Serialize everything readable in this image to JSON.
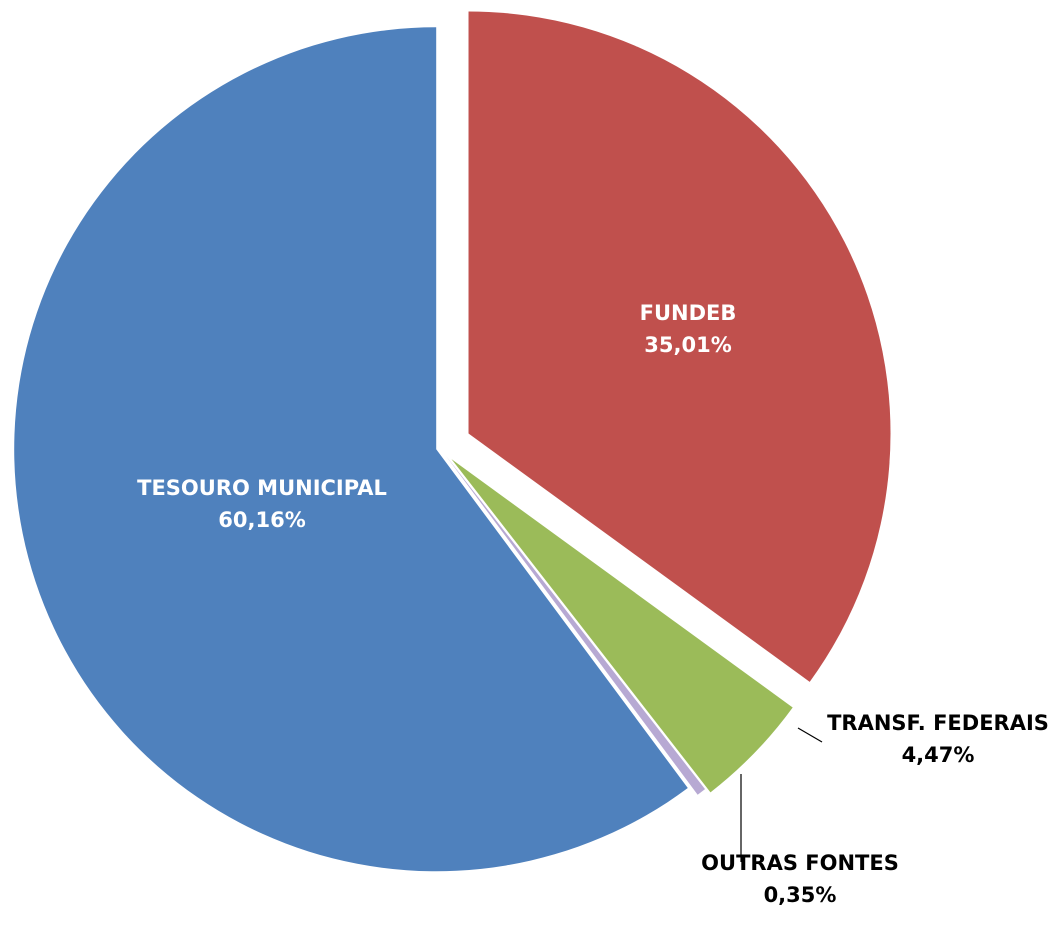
{
  "chart_data": {
    "type": "pie",
    "categories": [
      "FUNDEB",
      "TRANSF. FEDERAIS",
      "OUTRAS FONTES",
      "TESOURO MUNICIPAL"
    ],
    "values": [
      35.01,
      4.47,
      0.35,
      60.16
    ],
    "value_labels": [
      "35,01%",
      "4,47%",
      "0,35%",
      "60,16%"
    ],
    "colors": [
      "#c0504d",
      "#9bbb59",
      "#b7a9d3",
      "#4f81bd"
    ]
  }
}
